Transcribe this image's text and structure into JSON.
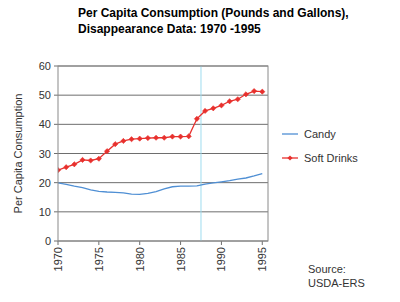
{
  "chart_data": {
    "type": "line",
    "title": "Per Capita Consumption (Pounds and Gallons),",
    "subtitle": "Disappearance Data: 1970 -1995",
    "y_label": "Per Capita Consumption",
    "x": [
      1970,
      1971,
      1972,
      1973,
      1974,
      1975,
      1976,
      1977,
      1978,
      1979,
      1980,
      1981,
      1982,
      1983,
      1984,
      1985,
      1986,
      1987,
      1988,
      1989,
      1990,
      1991,
      1992,
      1993,
      1994,
      1995
    ],
    "series": [
      {
        "name": "Candy",
        "color": "#4f8fd4",
        "marker": "none",
        "line_style": "solid",
        "values": [
          19.9,
          19.4,
          18.8,
          18.3,
          17.5,
          17.0,
          16.8,
          16.7,
          16.5,
          16.1,
          16.0,
          16.3,
          16.9,
          17.9,
          18.6,
          18.8,
          18.8,
          18.9,
          19.5,
          19.9,
          20.3,
          20.7,
          21.2,
          21.6,
          22.3,
          23.1
        ]
      },
      {
        "name": "Soft Drinks",
        "color": "#e8302d",
        "marker": "diamond",
        "line_style": "solid",
        "values": [
          24.3,
          25.3,
          26.3,
          27.8,
          27.6,
          28.2,
          30.8,
          33.2,
          34.3,
          34.9,
          35.1,
          35.3,
          35.4,
          35.4,
          35.8,
          35.8,
          35.9,
          41.9,
          44.6,
          45.5,
          46.5,
          47.9,
          48.6,
          50.3,
          51.4,
          51.2
        ]
      }
    ],
    "xlim": [
      1970,
      1995.7
    ],
    "xticks": [
      1970,
      1975,
      1980,
      1985,
      1990,
      1995
    ],
    "ylim": [
      0,
      60
    ],
    "yticks": [
      0,
      10,
      20,
      30,
      40,
      50,
      60
    ],
    "grid": true,
    "legend": "right",
    "reference_x": 1987.5,
    "annotations": [
      "Source:",
      "USDA-ERS"
    ]
  }
}
